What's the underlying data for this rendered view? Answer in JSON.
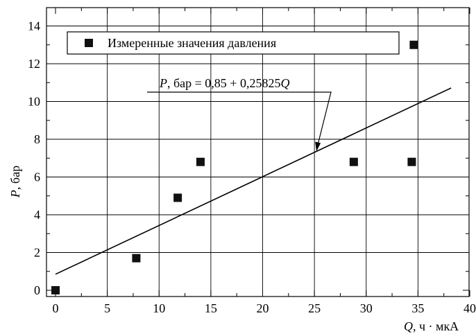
{
  "chart_data": {
    "type": "scatter",
    "x_axis": {
      "label_var": "Q",
      "label_rest": ", ч · мкА",
      "range": [
        0,
        40
      ],
      "major_ticks": [
        0,
        5,
        10,
        15,
        20,
        25,
        30,
        35,
        40
      ],
      "minor_step": 2.5
    },
    "y_axis": {
      "label_var": "P",
      "label_rest": ", бар",
      "range": [
        0,
        14.5
      ],
      "major_ticks": [
        0,
        2,
        4,
        6,
        8,
        10,
        12,
        14
      ],
      "minor_step": 1
    },
    "grid": true,
    "legend": {
      "position": "top-left",
      "label": "Измеренные значения давления"
    },
    "series": [
      {
        "name": "Измеренные значения давления",
        "marker": "square",
        "points": [
          {
            "x": 0,
            "y": 0
          },
          {
            "x": 7.8,
            "y": 1.7
          },
          {
            "x": 11.8,
            "y": 4.9
          },
          {
            "x": 14,
            "y": 6.8
          },
          {
            "x": 28.8,
            "y": 6.8
          },
          {
            "x": 34.4,
            "y": 6.8
          },
          {
            "x": 34.6,
            "y": 13
          }
        ]
      }
    ],
    "fit_line": {
      "intercept": 0.85,
      "slope": 0.25825,
      "x_range": [
        0,
        38.2
      ],
      "annotation": {
        "var_P": "P",
        "mid": ", бар = 0,85 + 0,25825",
        "var_Q": "Q",
        "points_to_x": 25.2
      }
    }
  }
}
